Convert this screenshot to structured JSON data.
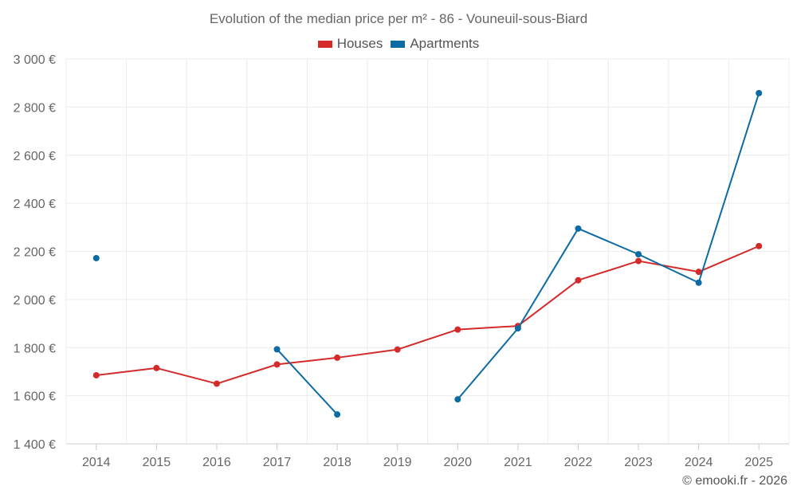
{
  "chart_data": {
    "type": "line",
    "title": "Evolution of the median price per m² - 86 - Vouneuil-sous-Biard",
    "xlabel": "",
    "ylabel": "",
    "categories": [
      "2014",
      "2015",
      "2016",
      "2017",
      "2018",
      "2019",
      "2020",
      "2021",
      "2022",
      "2023",
      "2024",
      "2025"
    ],
    "ylim": [
      1400,
      3000
    ],
    "yticks": [
      1400,
      1600,
      1800,
      2000,
      2200,
      2400,
      2600,
      2800,
      3000
    ],
    "ytick_labels": [
      "1 400 €",
      "1 600 €",
      "1 800 €",
      "2 000 €",
      "2 200 €",
      "2 400 €",
      "2 600 €",
      "2 800 €",
      "3 000 €"
    ],
    "grid": true,
    "legend_position": "top-center",
    "series": [
      {
        "name": "Houses",
        "color": "#d42a2a",
        "values": [
          1685,
          1715,
          1650,
          1730,
          1758,
          1792,
          1875,
          1890,
          2080,
          2160,
          2115,
          2222
        ]
      },
      {
        "name": "Apartments",
        "color": "#0d6ba3",
        "values": [
          2172,
          null,
          null,
          1793,
          1522,
          null,
          1585,
          1880,
          2295,
          2188,
          2070,
          2858
        ]
      }
    ]
  },
  "credit": "© emooki.fr - 2026"
}
